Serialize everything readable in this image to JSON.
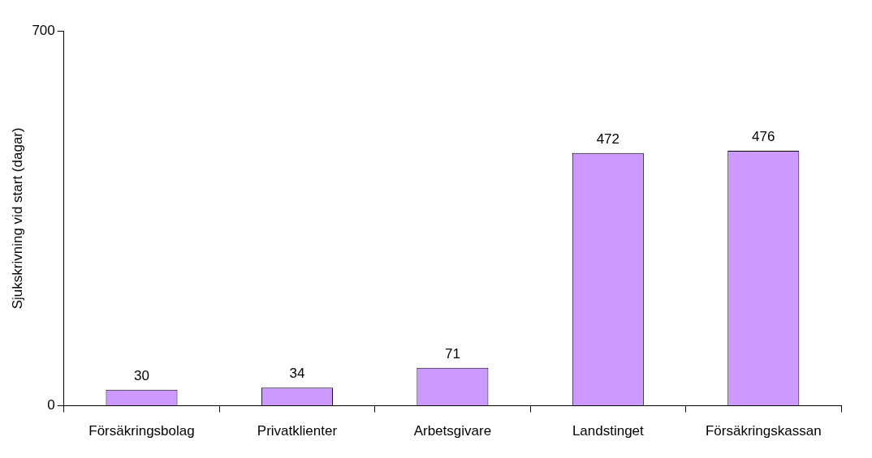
{
  "chart_data": {
    "type": "bar",
    "ylabel": "Sjukskrivning vid start (dagar)",
    "categories": [
      "Försäkringsbolag",
      "Privatklienter",
      "Arbetsgivare",
      "Landstinget",
      "Försäkringskassan"
    ],
    "values": [
      30,
      34,
      71,
      472,
      476
    ],
    "color": "#cc99ff",
    "ylim": [
      0,
      700
    ],
    "yticks": [
      0,
      700
    ],
    "data_labels": true,
    "legend": false,
    "grid": false
  }
}
